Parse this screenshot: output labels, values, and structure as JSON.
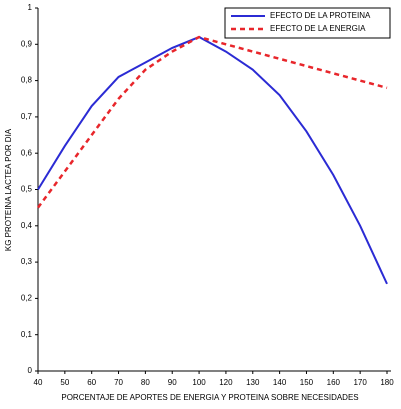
{
  "chart_data": {
    "type": "line",
    "x_label": "PORCENTAJE DE APORTES DE ENERGIA Y PROTEINA SOBRE NECESIDADES",
    "y_label": "KG PROTEINA LACTEA POR DIA",
    "categories": [
      40,
      50,
      60,
      70,
      80,
      90,
      100,
      120,
      130,
      140,
      150,
      160,
      170,
      180
    ],
    "series": [
      {
        "name": "EFECTO DE LA PROTEINA",
        "color": "#2b2bd4",
        "dash": false,
        "values": [
          0.5,
          0.62,
          0.73,
          0.81,
          0.85,
          0.89,
          0.92,
          0.88,
          0.83,
          0.76,
          0.66,
          0.54,
          0.4,
          0.24
        ]
      },
      {
        "name": "EFECTO DE LA ENERGIA",
        "color": "#e8262b",
        "dash": true,
        "values": [
          0.45,
          0.55,
          0.65,
          0.75,
          0.83,
          0.88,
          0.92,
          0.9,
          0.88,
          0.86,
          0.84,
          0.82,
          0.8,
          0.78
        ]
      }
    ],
    "ylim": [
      0,
      1
    ],
    "yticks": [
      0,
      {
        "value": 0.1,
        "label": "0,1"
      },
      {
        "value": 0.2,
        "label": "0,2"
      },
      {
        "value": 0.3,
        "label": "0,3"
      },
      {
        "value": 0.4,
        "label": "0,4"
      },
      {
        "value": 0.5,
        "label": "0,5"
      },
      {
        "value": 0.6,
        "label": "0,6"
      },
      {
        "value": 0.7,
        "label": "0,7"
      },
      {
        "value": 0.8,
        "label": "0,8"
      },
      {
        "value": 0.9,
        "label": "0,9"
      },
      1
    ],
    "legend": "top-right"
  }
}
